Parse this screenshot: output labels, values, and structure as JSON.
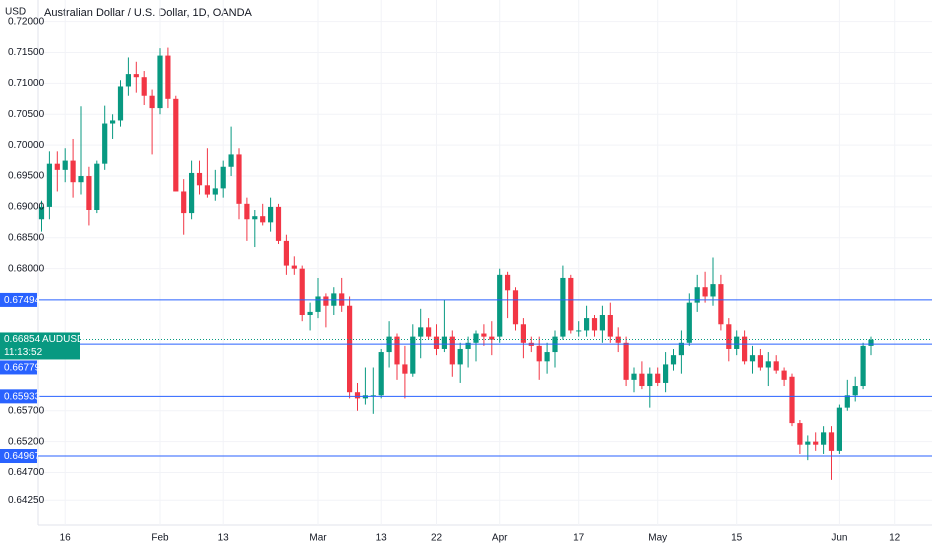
{
  "chart_data": {
    "type": "candlestick",
    "title": "Australian Dollar / U.S. Dollar, 1D, OANDA",
    "currency": "USD",
    "categories": [
      null,
      null,
      null,
      "16",
      null,
      null,
      null,
      null,
      null,
      null,
      null,
      null,
      null,
      null,
      null,
      "Feb",
      null,
      null,
      null,
      null,
      null,
      null,
      null,
      "13",
      null,
      null,
      null,
      null,
      null,
      null,
      null,
      null,
      null,
      null,
      null,
      "Mar",
      null,
      null,
      null,
      null,
      null,
      null,
      null,
      "13",
      null,
      null,
      null,
      null,
      null,
      null,
      "22",
      null,
      null,
      null,
      null,
      null,
      null,
      null,
      "Apr",
      null,
      null,
      null,
      null,
      null,
      null,
      null,
      null,
      null,
      "17",
      null,
      null,
      null,
      null,
      null,
      null,
      null,
      null,
      null,
      "May",
      null,
      null,
      null,
      null,
      null,
      null,
      null,
      null,
      null,
      "15",
      null,
      null,
      null,
      null,
      null,
      null,
      null,
      null,
      null,
      null,
      null,
      null,
      "Jun",
      null,
      null,
      null,
      null,
      null,
      null,
      "12"
    ],
    "series": [
      {
        "name": "AUDUSD",
        "up_color": "#089981",
        "down_color": "#f23645",
        "open": [
          0.688,
          0.69,
          0.697,
          0.696,
          0.6975,
          0.694,
          0.695,
          0.6895,
          0.697,
          0.7035,
          0.704,
          0.7095,
          0.7115,
          0.711,
          0.708,
          0.706,
          0.7145,
          0.7075,
          0.6925,
          0.689,
          0.6955,
          0.6935,
          0.692,
          0.693,
          0.6965,
          0.6985,
          0.6905,
          0.688,
          0.6885,
          0.6875,
          0.69,
          0.6845,
          0.6805,
          0.68,
          0.6725,
          0.673,
          0.6755,
          0.674,
          0.676,
          0.674,
          0.66,
          0.659,
          0.6595,
          0.6595,
          0.6665,
          0.669,
          0.6645,
          0.663,
          0.669,
          0.6705,
          0.669,
          0.667,
          0.669,
          0.6645,
          0.667,
          0.668,
          0.6695,
          0.669,
          0.669,
          0.679,
          0.6765,
          0.671,
          0.668,
          0.6675,
          0.665,
          0.6665,
          0.669,
          0.6785,
          0.67,
          0.67,
          0.672,
          0.67,
          0.6725,
          0.669,
          0.668,
          0.662,
          0.663,
          0.661,
          0.663,
          0.6615,
          0.6645,
          0.666,
          0.668,
          0.6745,
          0.677,
          0.6755,
          0.6775,
          0.671,
          0.667,
          0.669,
          0.665,
          0.666,
          0.664,
          0.665,
          0.6635,
          0.6625,
          0.655,
          0.6515,
          0.652,
          0.6515,
          0.6535,
          0.6505,
          0.6575,
          0.6595,
          0.661,
          0.6675,
          null,
          null,
          null
        ],
        "high": [
          0.691,
          0.699,
          0.699,
          0.6995,
          0.701,
          0.7063,
          0.6965,
          0.6975,
          0.7064,
          0.705,
          0.7105,
          0.7142,
          0.7135,
          0.712,
          0.709,
          0.7157,
          0.7158,
          0.708,
          0.6945,
          0.6975,
          0.6975,
          0.6995,
          0.696,
          0.6975,
          0.703,
          0.6995,
          0.6915,
          0.6895,
          0.6905,
          0.6915,
          0.6905,
          0.6855,
          0.682,
          0.6805,
          0.6745,
          0.6785,
          0.676,
          0.677,
          0.6785,
          0.6755,
          0.6615,
          0.664,
          0.664,
          0.667,
          0.6715,
          0.6695,
          0.6675,
          0.671,
          0.6735,
          0.672,
          0.671,
          0.675,
          0.67,
          0.668,
          0.669,
          0.67,
          0.671,
          0.6715,
          0.68,
          0.6795,
          0.677,
          0.672,
          0.669,
          0.669,
          0.668,
          0.67,
          0.6805,
          0.679,
          0.6715,
          0.674,
          0.6725,
          0.674,
          0.6745,
          0.6705,
          0.669,
          0.664,
          0.665,
          0.664,
          0.664,
          0.6665,
          0.667,
          0.67,
          0.676,
          0.679,
          0.6795,
          0.6818,
          0.679,
          0.672,
          0.67,
          0.67,
          0.6675,
          0.667,
          0.6665,
          0.666,
          0.664,
          0.663,
          0.6555,
          0.653,
          0.6535,
          0.6545,
          0.6545,
          0.658,
          0.662,
          0.6625,
          0.668,
          0.669,
          null,
          null,
          null
        ],
        "low": [
          0.686,
          0.688,
          0.6925,
          0.694,
          0.6915,
          0.692,
          0.687,
          0.689,
          0.696,
          0.701,
          0.703,
          0.708,
          0.7085,
          0.7065,
          0.6985,
          0.705,
          0.706,
          0.6925,
          0.6855,
          0.688,
          0.692,
          0.6915,
          0.691,
          0.6915,
          0.695,
          0.688,
          0.6845,
          0.6835,
          0.687,
          0.686,
          0.684,
          0.679,
          0.679,
          0.6715,
          0.67,
          0.672,
          0.6705,
          0.6725,
          0.673,
          0.659,
          0.657,
          0.658,
          0.6565,
          0.659,
          0.664,
          0.662,
          0.659,
          0.6625,
          0.6655,
          0.6685,
          0.666,
          0.6665,
          0.6625,
          0.6615,
          0.664,
          0.665,
          0.6675,
          0.666,
          0.668,
          0.672,
          0.67,
          0.6655,
          0.6665,
          0.662,
          0.663,
          0.664,
          0.6685,
          0.6695,
          0.669,
          0.669,
          0.669,
          0.668,
          0.668,
          0.6665,
          0.661,
          0.66,
          0.6605,
          0.6575,
          0.661,
          0.66,
          0.6635,
          0.663,
          0.6675,
          0.673,
          0.6745,
          0.674,
          0.67,
          0.665,
          0.666,
          0.6645,
          0.663,
          0.6635,
          0.661,
          0.663,
          0.661,
          0.6545,
          0.65,
          0.649,
          0.6505,
          0.65,
          0.6458,
          0.65,
          0.657,
          0.6585,
          0.6605,
          0.666,
          null,
          null,
          null
        ],
        "close": [
          0.69,
          0.697,
          0.696,
          0.6975,
          0.694,
          0.695,
          0.6895,
          0.697,
          0.7035,
          0.704,
          0.7095,
          0.7115,
          0.711,
          0.708,
          0.706,
          0.7145,
          0.7075,
          0.6925,
          0.689,
          0.6955,
          0.6935,
          0.692,
          0.693,
          0.6965,
          0.6985,
          0.6905,
          0.688,
          0.6885,
          0.6875,
          0.69,
          0.6845,
          0.6805,
          0.68,
          0.6725,
          0.673,
          0.6755,
          0.674,
          0.676,
          0.674,
          0.66,
          0.659,
          0.6595,
          0.6595,
          0.6665,
          0.669,
          0.6645,
          0.663,
          0.669,
          0.6705,
          0.669,
          0.667,
          0.669,
          0.6645,
          0.667,
          0.668,
          0.6695,
          0.669,
          0.6685,
          0.679,
          0.6765,
          0.671,
          0.668,
          0.6675,
          0.665,
          0.6665,
          0.669,
          0.6785,
          0.67,
          0.67,
          0.672,
          0.67,
          0.6725,
          0.669,
          0.668,
          0.662,
          0.663,
          0.661,
          0.663,
          0.6615,
          0.6645,
          0.666,
          0.668,
          0.6745,
          0.677,
          0.6755,
          0.6775,
          0.671,
          0.667,
          0.669,
          0.665,
          0.666,
          0.664,
          0.665,
          0.6635,
          0.662,
          0.655,
          0.6515,
          0.652,
          0.6515,
          0.6535,
          0.6505,
          0.6575,
          0.6595,
          0.661,
          0.6675,
          0.6685,
          null,
          null,
          null
        ]
      }
    ],
    "ylim": [
      0.6385,
      0.7235
    ],
    "yticks": [
      {
        "value": 0.72,
        "label": "0.72000"
      },
      {
        "value": 0.715,
        "label": "0.71500"
      },
      {
        "value": 0.71,
        "label": "0.71000"
      },
      {
        "value": 0.705,
        "label": "0.70500"
      },
      {
        "value": 0.7,
        "label": "0.70000"
      },
      {
        "value": 0.695,
        "label": "0.69500"
      },
      {
        "value": 0.69,
        "label": "0.69000"
      },
      {
        "value": 0.685,
        "label": "0.68500"
      },
      {
        "value": 0.68,
        "label": "0.68000"
      },
      {
        "value": 0.657,
        "label": "0.65700"
      },
      {
        "value": 0.652,
        "label": "0.65200"
      },
      {
        "value": 0.647,
        "label": "0.64700"
      },
      {
        "value": 0.6425,
        "label": "0.64250"
      }
    ],
    "grid": true,
    "levels": [
      {
        "value": 0.67494,
        "color": "#2962ff"
      },
      {
        "value": 0.66779,
        "color": "#2962ff"
      },
      {
        "value": 0.65933,
        "color": "#2962ff"
      },
      {
        "value": 0.64967,
        "color": "#2962ff"
      }
    ],
    "last_price": {
      "value": 0.66854,
      "symbol": "AUDUSD",
      "countdown": "11:13:52",
      "color": "#089981"
    }
  }
}
